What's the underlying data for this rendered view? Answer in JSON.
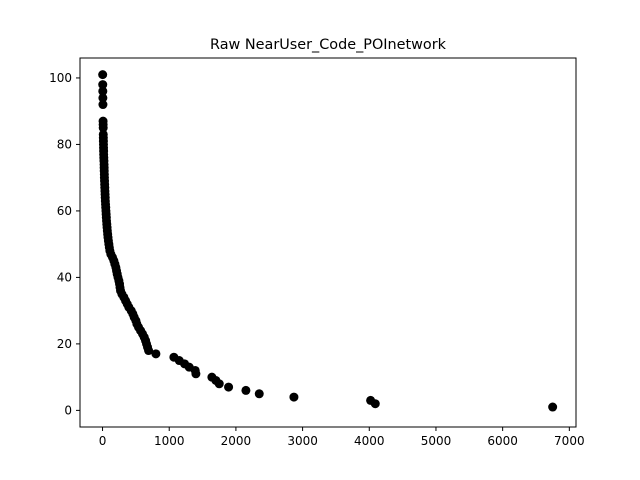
{
  "chart_data": {
    "type": "scatter",
    "title": "Raw NearUser_Code_POInetwork",
    "xlabel": "",
    "ylabel": "",
    "xlim": [
      -338,
      7100
    ],
    "ylim": [
      -5,
      106
    ],
    "xticks": [
      0,
      1000,
      2000,
      3000,
      4000,
      5000,
      6000,
      7000
    ],
    "yticks": [
      0,
      20,
      40,
      60,
      80,
      100
    ],
    "grid": false,
    "marker_color": "#000000",
    "points": [
      {
        "x": 2,
        "y": 101
      },
      {
        "x": 3,
        "y": 98
      },
      {
        "x": 4,
        "y": 96
      },
      {
        "x": 5,
        "y": 94
      },
      {
        "x": 6,
        "y": 92
      },
      {
        "x": 8,
        "y": 87
      },
      {
        "x": 9,
        "y": 86
      },
      {
        "x": 10,
        "y": 85
      },
      {
        "x": 11,
        "y": 83
      },
      {
        "x": 12,
        "y": 82
      },
      {
        "x": 13,
        "y": 81
      },
      {
        "x": 14,
        "y": 80
      },
      {
        "x": 15,
        "y": 79
      },
      {
        "x": 16,
        "y": 78
      },
      {
        "x": 17,
        "y": 77
      },
      {
        "x": 19,
        "y": 76
      },
      {
        "x": 21,
        "y": 75
      },
      {
        "x": 23,
        "y": 74
      },
      {
        "x": 24,
        "y": 73
      },
      {
        "x": 25,
        "y": 72
      },
      {
        "x": 27,
        "y": 71
      },
      {
        "x": 28,
        "y": 70
      },
      {
        "x": 30,
        "y": 69
      },
      {
        "x": 32,
        "y": 68
      },
      {
        "x": 34,
        "y": 67
      },
      {
        "x": 36,
        "y": 66
      },
      {
        "x": 38,
        "y": 65
      },
      {
        "x": 40,
        "y": 64
      },
      {
        "x": 42,
        "y": 63
      },
      {
        "x": 45,
        "y": 62
      },
      {
        "x": 48,
        "y": 61
      },
      {
        "x": 51,
        "y": 60
      },
      {
        "x": 54,
        "y": 59
      },
      {
        "x": 57,
        "y": 58
      },
      {
        "x": 60,
        "y": 57
      },
      {
        "x": 64,
        "y": 56
      },
      {
        "x": 68,
        "y": 55
      },
      {
        "x": 72,
        "y": 54
      },
      {
        "x": 77,
        "y": 53
      },
      {
        "x": 82,
        "y": 52
      },
      {
        "x": 88,
        "y": 51
      },
      {
        "x": 95,
        "y": 50
      },
      {
        "x": 102,
        "y": 49
      },
      {
        "x": 110,
        "y": 48
      },
      {
        "x": 125,
        "y": 47
      },
      {
        "x": 150,
        "y": 46
      },
      {
        "x": 170,
        "y": 45
      },
      {
        "x": 185,
        "y": 44
      },
      {
        "x": 200,
        "y": 43
      },
      {
        "x": 210,
        "y": 42
      },
      {
        "x": 220,
        "y": 41
      },
      {
        "x": 232,
        "y": 40
      },
      {
        "x": 245,
        "y": 39
      },
      {
        "x": 255,
        "y": 38
      },
      {
        "x": 262,
        "y": 37
      },
      {
        "x": 270,
        "y": 36
      },
      {
        "x": 290,
        "y": 35
      },
      {
        "x": 320,
        "y": 34
      },
      {
        "x": 345,
        "y": 33
      },
      {
        "x": 370,
        "y": 32
      },
      {
        "x": 395,
        "y": 31
      },
      {
        "x": 430,
        "y": 30
      },
      {
        "x": 455,
        "y": 29
      },
      {
        "x": 475,
        "y": 28
      },
      {
        "x": 500,
        "y": 27
      },
      {
        "x": 515,
        "y": 26
      },
      {
        "x": 540,
        "y": 25
      },
      {
        "x": 570,
        "y": 24
      },
      {
        "x": 600,
        "y": 23
      },
      {
        "x": 625,
        "y": 22
      },
      {
        "x": 645,
        "y": 21
      },
      {
        "x": 660,
        "y": 20
      },
      {
        "x": 675,
        "y": 19
      },
      {
        "x": 690,
        "y": 18
      },
      {
        "x": 800,
        "y": 17
      },
      {
        "x": 1070,
        "y": 16
      },
      {
        "x": 1150,
        "y": 15
      },
      {
        "x": 1230,
        "y": 14
      },
      {
        "x": 1300,
        "y": 13
      },
      {
        "x": 1390,
        "y": 12
      },
      {
        "x": 1400,
        "y": 11
      },
      {
        "x": 1640,
        "y": 10
      },
      {
        "x": 1700,
        "y": 9
      },
      {
        "x": 1750,
        "y": 8
      },
      {
        "x": 1890,
        "y": 7
      },
      {
        "x": 2150,
        "y": 6
      },
      {
        "x": 2350,
        "y": 5
      },
      {
        "x": 2870,
        "y": 4
      },
      {
        "x": 4020,
        "y": 3
      },
      {
        "x": 4090,
        "y": 2
      },
      {
        "x": 6750,
        "y": 1
      }
    ]
  }
}
